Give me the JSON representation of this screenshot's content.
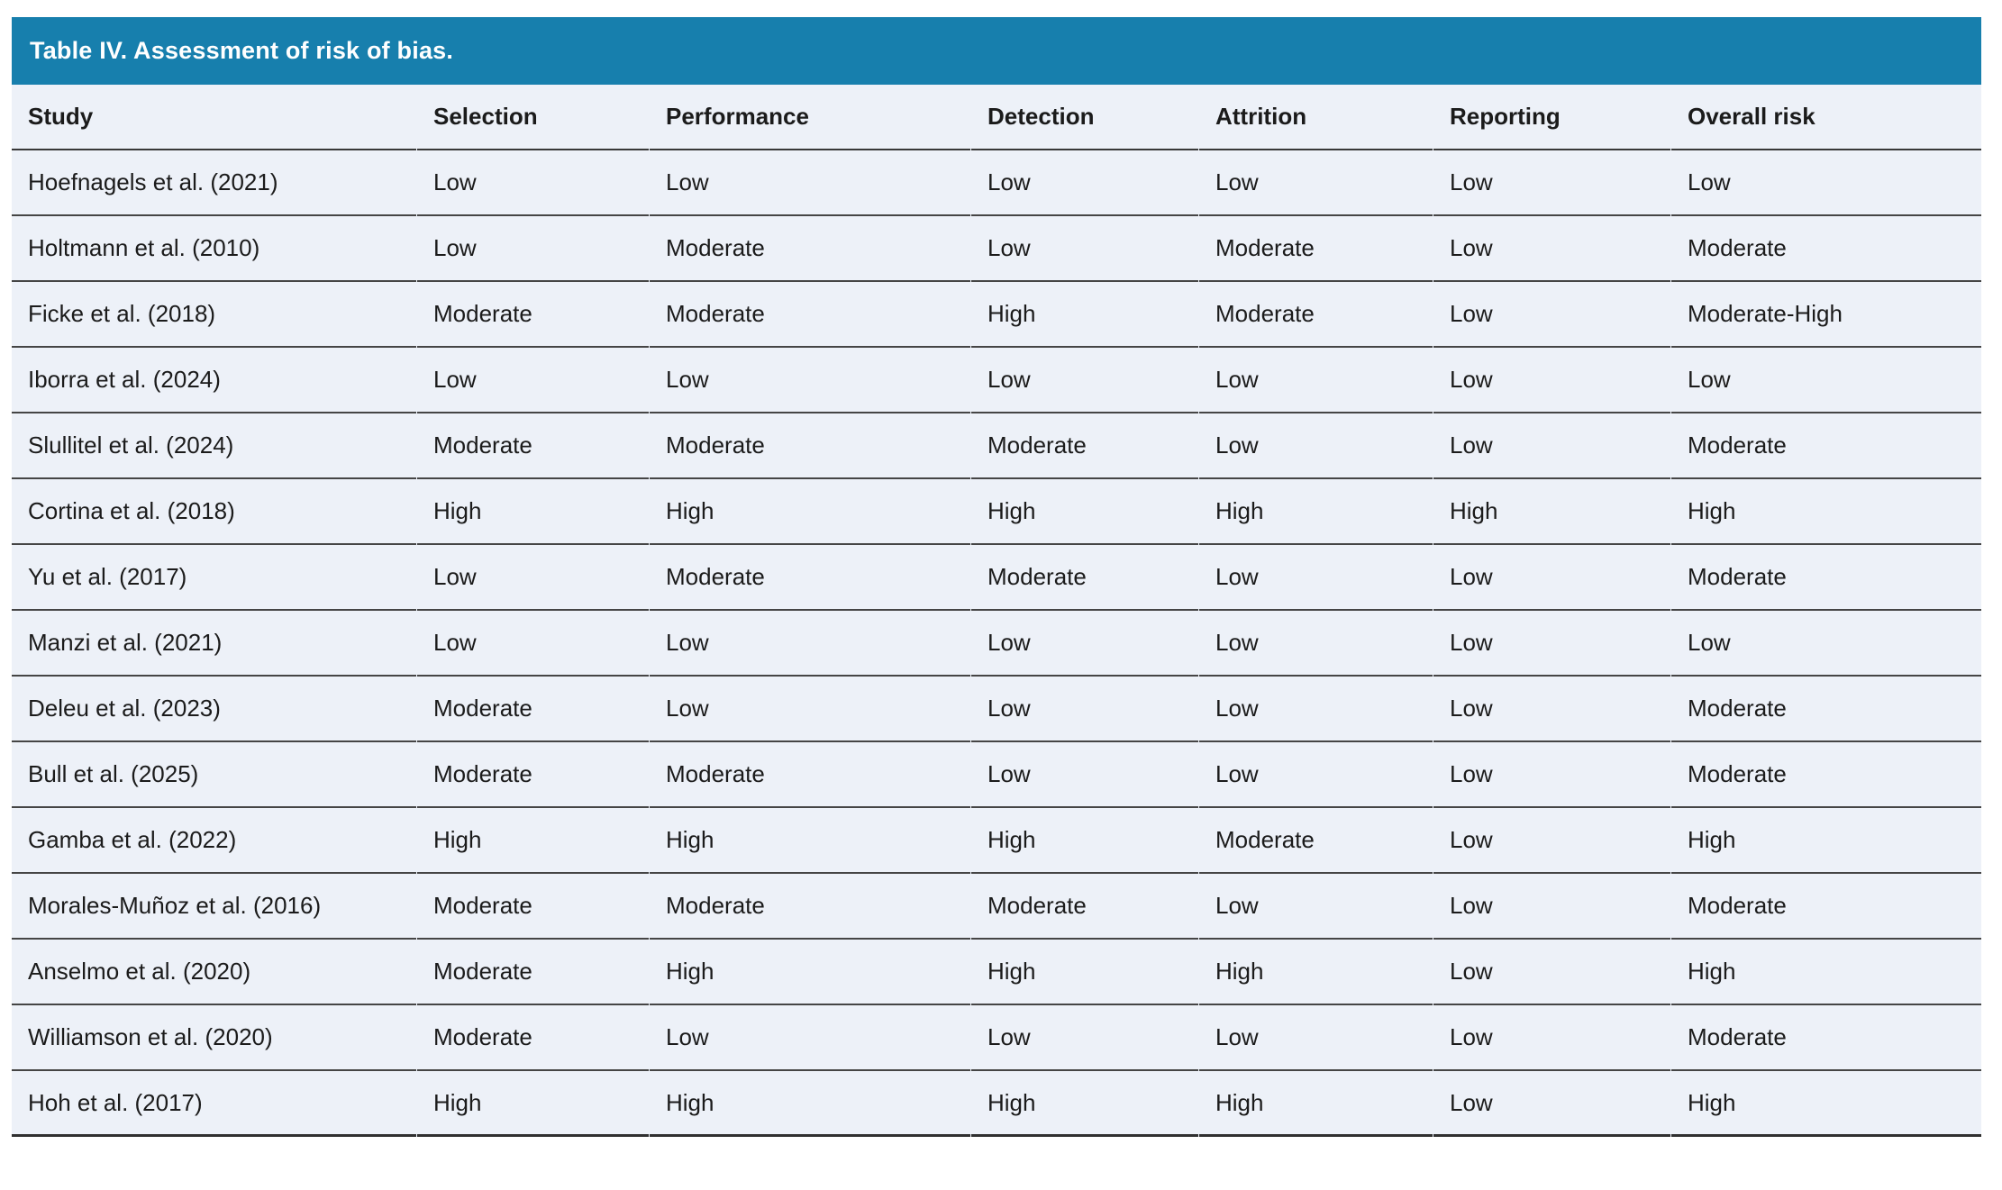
{
  "table": {
    "title": "Table IV. Assessment of risk of bias.",
    "title_bar_color": "#177fad",
    "body_background": "#edf1f8",
    "columns": [
      "Study",
      "Selection",
      "Performance",
      "Detection",
      "Attrition",
      "Reporting",
      "Overall risk"
    ],
    "rows": [
      [
        "Hoefnagels et al. (2021)",
        "Low",
        "Low",
        "Low",
        "Low",
        "Low",
        "Low"
      ],
      [
        "Holtmann et al. (2010)",
        "Low",
        "Moderate",
        "Low",
        "Moderate",
        "Low",
        "Moderate"
      ],
      [
        "Ficke et al. (2018)",
        "Moderate",
        "Moderate",
        "High",
        "Moderate",
        "Low",
        "Moderate-High"
      ],
      [
        "Iborra et al. (2024)",
        "Low",
        "Low",
        "Low",
        "Low",
        "Low",
        "Low"
      ],
      [
        "Slullitel et al. (2024)",
        "Moderate",
        "Moderate",
        "Moderate",
        "Low",
        "Low",
        "Moderate"
      ],
      [
        "Cortina et al. (2018)",
        "High",
        "High",
        "High",
        "High",
        "High",
        "High"
      ],
      [
        "Yu et al. (2017)",
        "Low",
        "Moderate",
        "Moderate",
        "Low",
        "Low",
        "Moderate"
      ],
      [
        "Manzi et al. (2021)",
        "Low",
        "Low",
        "Low",
        "Low",
        "Low",
        "Low"
      ],
      [
        "Deleu et al. (2023)",
        "Moderate",
        "Low",
        "Low",
        "Low",
        "Low",
        "Moderate"
      ],
      [
        "Bull et al. (2025)",
        "Moderate",
        "Moderate",
        "Low",
        "Low",
        "Low",
        "Moderate"
      ],
      [
        "Gamba et al. (2022)",
        "High",
        "High",
        "High",
        "Moderate",
        "Low",
        "High"
      ],
      [
        "Morales-Muñoz et al. (2016)",
        "Moderate",
        "Moderate",
        "Moderate",
        "Low",
        "Low",
        "Moderate"
      ],
      [
        "Anselmo et al. (2020)",
        "Moderate",
        "High",
        "High",
        "High",
        "Low",
        "High"
      ],
      [
        "Williamson et al. (2020)",
        "Moderate",
        "Low",
        "Low",
        "Low",
        "Low",
        "Moderate"
      ],
      [
        "Hoh et al. (2017)",
        "High",
        "High",
        "High",
        "High",
        "Low",
        "High"
      ]
    ]
  }
}
